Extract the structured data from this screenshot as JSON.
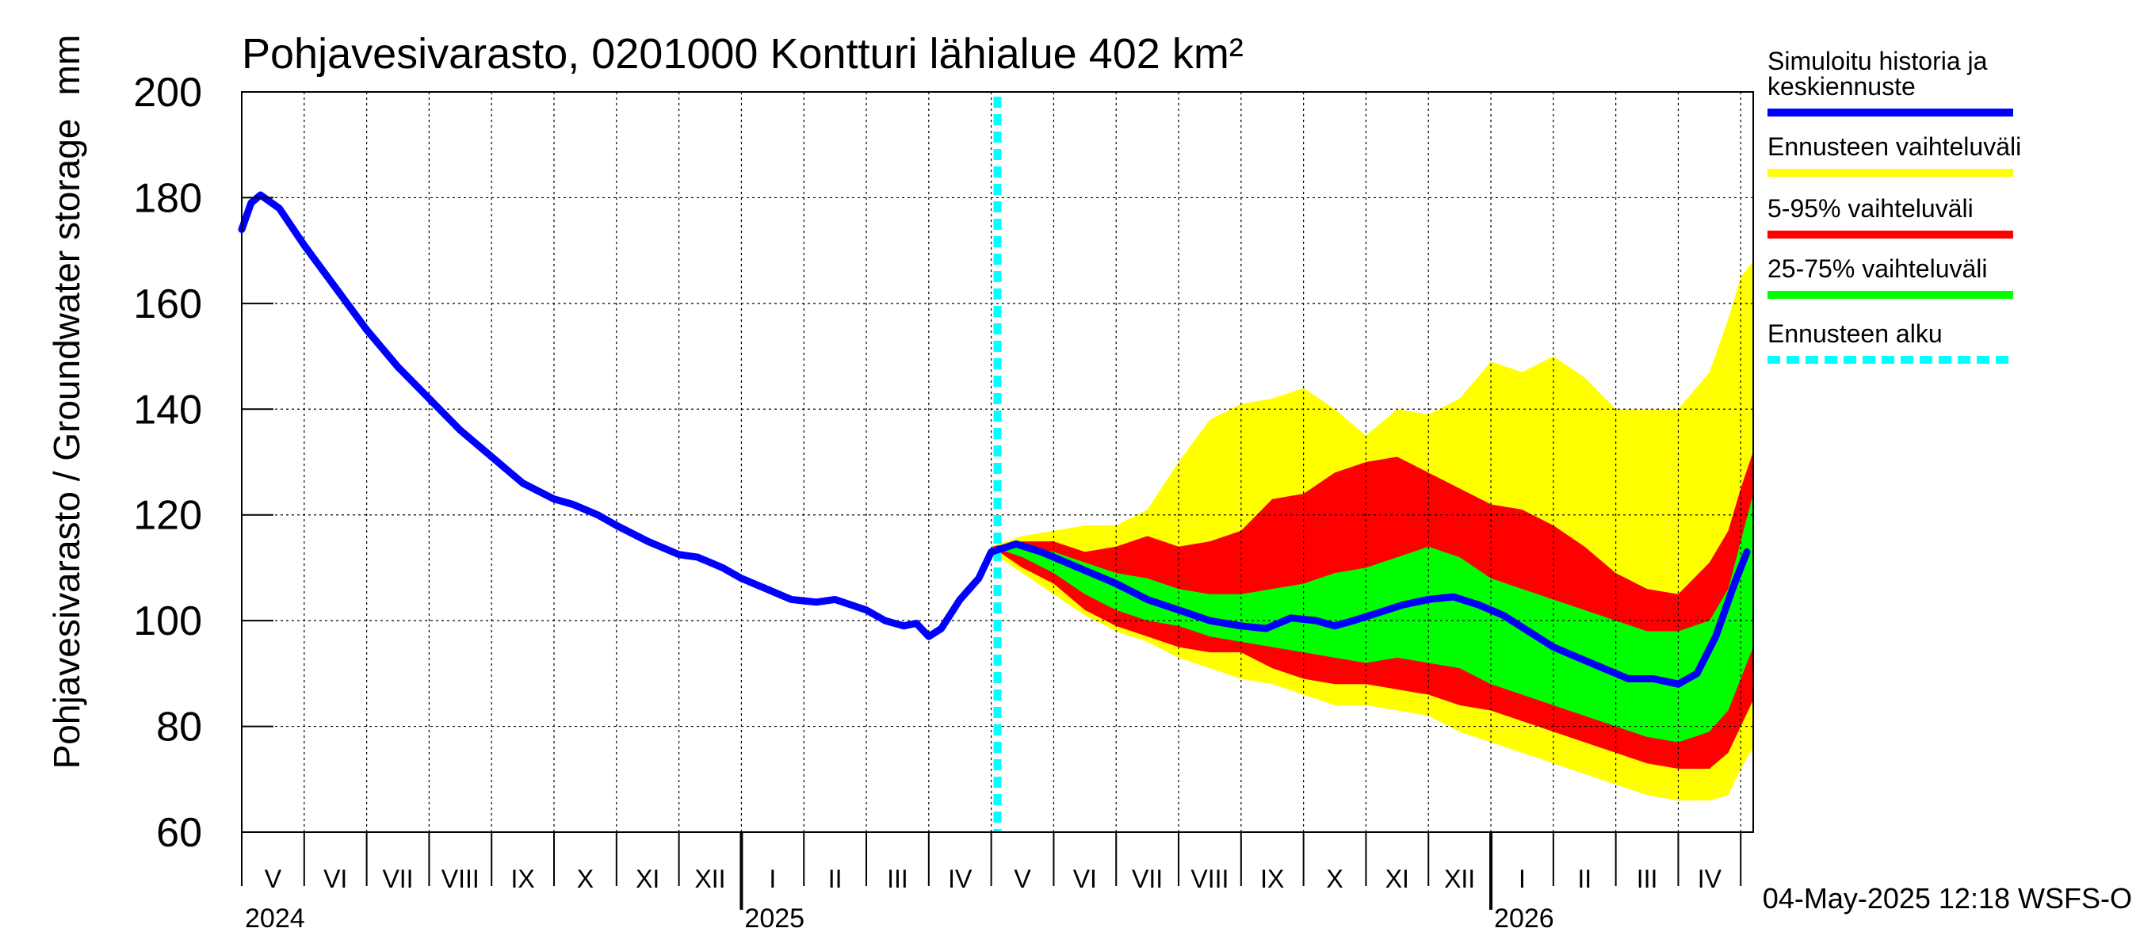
{
  "chart_data": {
    "type": "area",
    "title": "Pohjavesivarasto, 0201000 Kontturi lähialue 402 km²",
    "ylabel": "Pohjavesivarasto / Groundwater storage",
    "yunit": "mm",
    "ylim": [
      60,
      200
    ],
    "yticks": [
      60,
      80,
      100,
      120,
      140,
      160,
      180,
      200
    ],
    "grid": true,
    "x_range_months": [
      0,
      24.2
    ],
    "month_labels": [
      "V",
      "VI",
      "VII",
      "VIII",
      "IX",
      "X",
      "XI",
      "XII",
      "I",
      "II",
      "III",
      "IV",
      "V",
      "VI",
      "VII",
      "VIII",
      "IX",
      "X",
      "XI",
      "XII",
      "I",
      "II",
      "III",
      "IV"
    ],
    "year_labels": [
      {
        "label": "2024",
        "month": 0
      },
      {
        "label": "2025",
        "month": 8
      },
      {
        "label": "2026",
        "month": 20
      }
    ],
    "forecast_start_month": 12.1,
    "legend": [
      {
        "label": "Simuloitu historia ja keskiennuste",
        "color": "#0000ff",
        "style": "solid"
      },
      {
        "label": "Ennusteen vaihteluväli",
        "color": "#ffff00",
        "style": "solid"
      },
      {
        "label": "5-95% vaihteluväli",
        "color": "#ff0000",
        "style": "solid"
      },
      {
        "label": "25-75% vaihteluväli",
        "color": "#00ff00",
        "style": "solid"
      },
      {
        "label": "Ennusteen alku",
        "color": "#00ffff",
        "style": "dashed"
      }
    ],
    "footer": "04-May-2025 12:18 WSFS-O",
    "series": [
      {
        "name": "Simuloitu historia ja keskiennuste",
        "color": "#0000ff",
        "x": [
          0,
          0.15,
          0.3,
          0.6,
          1.0,
          1.5,
          2.0,
          2.5,
          3.0,
          3.5,
          4.0,
          4.5,
          5.0,
          5.3,
          5.7,
          6.0,
          6.5,
          7.0,
          7.3,
          7.7,
          8.0,
          8.5,
          8.8,
          9.2,
          9.5,
          10.0,
          10.3,
          10.6,
          10.8,
          11.0,
          11.2,
          11.5,
          11.8,
          12.0,
          12.4,
          12.8,
          13.2,
          13.6,
          14.0,
          14.5,
          15.0,
          15.5,
          16.0,
          16.4,
          16.8,
          17.2,
          17.5,
          17.8,
          18.2,
          18.6,
          19.0,
          19.4,
          19.8,
          20.2,
          20.6,
          21.0,
          21.4,
          21.8,
          22.2,
          22.6,
          23.0,
          23.3,
          23.6,
          23.9,
          24.1
        ],
        "values": [
          174,
          179,
          180.5,
          178,
          171,
          163,
          155,
          148,
          142,
          136,
          131,
          126,
          123,
          122,
          120,
          118,
          115,
          112.5,
          112,
          110,
          108,
          105.5,
          104,
          103.5,
          104,
          102,
          100,
          99,
          99.5,
          97,
          98.5,
          104,
          108,
          113,
          114.5,
          113,
          111,
          109,
          107,
          104,
          102,
          100,
          99,
          98.5,
          100.5,
          100,
          99,
          100,
          101.5,
          103,
          104,
          104.5,
          103,
          101,
          98,
          95,
          93,
          91,
          89,
          89,
          88,
          90,
          97,
          107,
          113
        ]
      }
    ],
    "bands": [
      {
        "name": "Ennusteen vaihteluväli",
        "color": "#ffff00",
        "x": [
          12.0,
          12.5,
          13.0,
          13.5,
          14.0,
          14.5,
          15.0,
          15.5,
          16.0,
          16.5,
          17.0,
          17.5,
          18.0,
          18.5,
          19.0,
          19.5,
          20.0,
          20.5,
          21.0,
          21.5,
          22.0,
          22.5,
          23.0,
          23.5,
          23.8,
          24.0,
          24.2
        ],
        "upper": [
          114,
          116,
          117,
          118,
          118,
          121,
          130,
          138,
          141,
          142,
          144,
          140,
          135,
          140,
          139,
          142,
          149,
          147,
          150,
          146,
          140,
          140,
          140,
          147,
          157,
          165,
          168
        ],
        "lower": [
          113,
          109,
          105,
          101,
          98,
          96,
          93,
          91,
          89,
          88,
          86,
          84,
          84,
          83,
          82,
          79,
          77,
          75,
          73,
          71,
          69,
          67,
          66,
          66,
          67,
          72,
          76
        ]
      },
      {
        "name": "5-95% vaihteluväli",
        "color": "#ff0000",
        "x": [
          12.0,
          12.5,
          13.0,
          13.5,
          14.0,
          14.5,
          15.0,
          15.5,
          16.0,
          16.5,
          17.0,
          17.5,
          18.0,
          18.5,
          19.0,
          19.5,
          20.0,
          20.5,
          21.0,
          21.5,
          22.0,
          22.5,
          23.0,
          23.5,
          23.8,
          24.0,
          24.2
        ],
        "upper": [
          114,
          115,
          115,
          113,
          114,
          116,
          114,
          115,
          117,
          123,
          124,
          128,
          130,
          131,
          128,
          125,
          122,
          121,
          118,
          114,
          109,
          106,
          105,
          111,
          117,
          125,
          132
        ],
        "lower": [
          114,
          110,
          107,
          102,
          99,
          97,
          95,
          94,
          94,
          91,
          89,
          88,
          88,
          87,
          86,
          84,
          83,
          81,
          79,
          77,
          75,
          73,
          72,
          72,
          75,
          80,
          85
        ]
      },
      {
        "name": "25-75% vaihteluväli",
        "color": "#00ff00",
        "x": [
          12.0,
          12.5,
          13.0,
          13.5,
          14.0,
          14.5,
          15.0,
          15.5,
          16.0,
          16.5,
          17.0,
          17.5,
          18.0,
          18.5,
          19.0,
          19.5,
          20.0,
          20.5,
          21.0,
          21.5,
          22.0,
          22.5,
          23.0,
          23.5,
          23.8,
          24.0,
          24.2
        ],
        "upper": [
          114,
          114,
          113,
          111,
          109,
          108,
          106,
          105,
          105,
          106,
          107,
          109,
          110,
          112,
          114,
          112,
          108,
          106,
          104,
          102,
          100,
          98,
          98,
          100,
          106,
          115,
          124
        ],
        "lower": [
          114,
          112,
          109,
          105,
          102,
          100,
          99,
          97,
          96,
          95,
          94,
          93,
          92,
          93,
          92,
          91,
          88,
          86,
          84,
          82,
          80,
          78,
          77,
          79,
          83,
          89,
          95
        ]
      }
    ]
  }
}
